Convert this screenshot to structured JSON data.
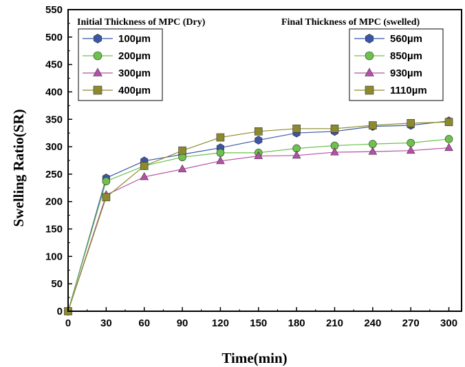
{
  "chart_data": {
    "type": "line",
    "xlabel": "Time(min)",
    "ylabel": "Swelling Ratio(SR)",
    "xlim": [
      0,
      310
    ],
    "ylim": [
      0,
      550
    ],
    "xticks": [
      0,
      30,
      60,
      90,
      120,
      150,
      180,
      210,
      240,
      270,
      300
    ],
    "yticks": [
      0,
      50,
      100,
      150,
      200,
      250,
      300,
      350,
      400,
      450,
      500,
      550
    ],
    "x": [
      0,
      30,
      60,
      90,
      120,
      150,
      180,
      210,
      240,
      270,
      300
    ],
    "series": [
      {
        "initial": "100µm",
        "final": "560µm",
        "color": "#3a56a6",
        "marker": "hexagon",
        "values": [
          0,
          243,
          274,
          286,
          298,
          312,
          325,
          328,
          337,
          339,
          347
        ]
      },
      {
        "initial": "200µm",
        "final": "850µm",
        "color": "#6cc24a",
        "marker": "circle",
        "values": [
          0,
          237,
          265,
          281,
          289,
          289,
          297,
          302,
          305,
          307,
          314
        ]
      },
      {
        "initial": "300µm",
        "final": "930µm",
        "color": "#b74fa8",
        "marker": "triangle",
        "values": [
          0,
          212,
          245,
          259,
          274,
          283,
          284,
          290,
          291,
          293,
          298
        ]
      },
      {
        "initial": "400µm",
        "final": "1110µm",
        "color": "#8c8a2c",
        "marker": "square",
        "values": [
          0,
          208,
          265,
          293,
          317,
          328,
          333,
          333,
          339,
          343,
          345
        ]
      }
    ],
    "legends": {
      "initial_title": "Initial Thickness of MPC (Dry)",
      "final_title": "Final Thickness of MPC (swelled)",
      "initial_placement": "top-left",
      "final_placement": "top-right"
    }
  }
}
